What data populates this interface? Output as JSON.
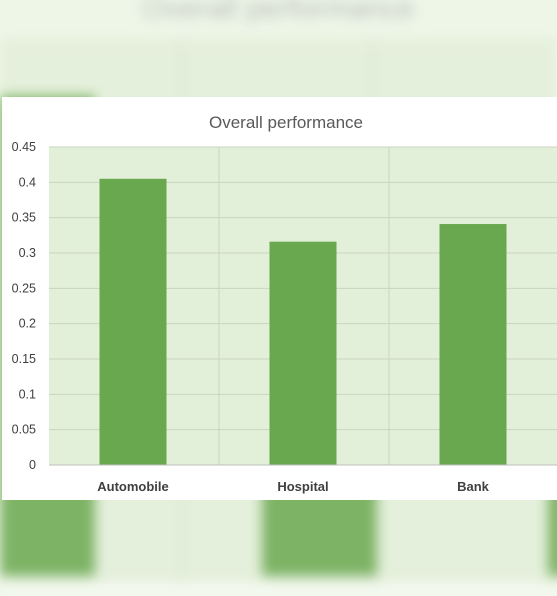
{
  "chart_data": {
    "type": "bar",
    "title": "Overall performance",
    "categories": [
      "Automobile",
      "Hospital",
      "Bank"
    ],
    "values": [
      0.405,
      0.316,
      0.341
    ],
    "ylim": [
      0,
      0.45
    ],
    "yticks": [
      "0",
      "0.05",
      "0.1",
      "0.15",
      "0.2",
      "0.25",
      "0.3",
      "0.35",
      "0.4",
      "0.45"
    ],
    "xlabel": "",
    "ylabel": "",
    "grid": true,
    "colors": {
      "bar": "#6aa84f",
      "plot_background": "#e2efd9",
      "gridline": "#c9d6bf"
    }
  }
}
